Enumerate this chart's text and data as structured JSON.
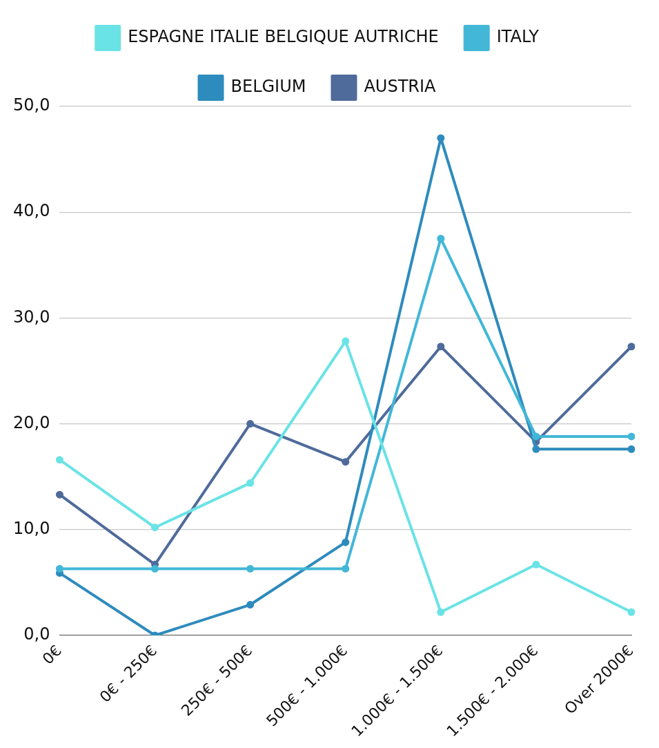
{
  "chart_data": {
    "type": "line",
    "categories": [
      "0€",
      "0€ - 250€",
      "250€ - 500€",
      "500€ - 1.000€",
      "1.000€ - 1.500€",
      "1.500€ - 2.000€",
      "Over 2000€"
    ],
    "series": [
      {
        "name": "ESPAGNE ITALIE BELGIQUE AUTRICHE",
        "color": "#6ae3e6",
        "values": [
          16.6,
          10.2,
          14.4,
          27.8,
          2.2,
          6.7,
          2.2
        ]
      },
      {
        "name": "ITALY",
        "color": "#42b7d7",
        "values": [
          6.3,
          6.3,
          6.3,
          6.3,
          37.5,
          18.8,
          18.8
        ]
      },
      {
        "name": "BELGIUM",
        "color": "#2e8bbd",
        "values": [
          5.9,
          0,
          2.9,
          8.8,
          47.0,
          17.6,
          17.6
        ]
      },
      {
        "name": "AUSTRIA",
        "color": "#4f6b9b",
        "values": [
          13.3,
          6.7,
          20.0,
          16.4,
          27.3,
          18.3,
          27.3
        ]
      }
    ],
    "ylim": [
      0,
      50
    ],
    "yticks": [
      {
        "value": 0,
        "label": "0,0"
      },
      {
        "value": 10,
        "label": "10,0"
      },
      {
        "value": 20,
        "label": "20,0"
      },
      {
        "value": 30,
        "label": "30,0"
      },
      {
        "value": 40,
        "label": "40,0"
      },
      {
        "value": 50,
        "label": "50,0"
      }
    ],
    "grid": "y",
    "legend": "top",
    "marker": "circle",
    "line_style": "solid"
  }
}
